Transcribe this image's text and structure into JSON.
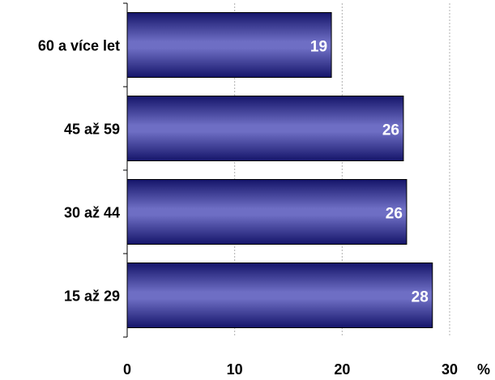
{
  "chart_data": {
    "type": "bar",
    "orientation": "horizontal",
    "categories": [
      "60 a více let",
      "45 až 59",
      "30 až 44",
      "15 až 29"
    ],
    "values": [
      19.0,
      25.7,
      26.0,
      28.4
    ],
    "data_labels": [
      "19",
      "26",
      "26",
      "28"
    ],
    "xlim": [
      0,
      30
    ],
    "xticks": [
      "0",
      "10",
      "20",
      "30"
    ],
    "unit_label": "%",
    "grid": "vertical dashed",
    "legend": "none",
    "bar_color_edge": "#1a1a6e",
    "bar_color_center": "#6c6cc0"
  }
}
